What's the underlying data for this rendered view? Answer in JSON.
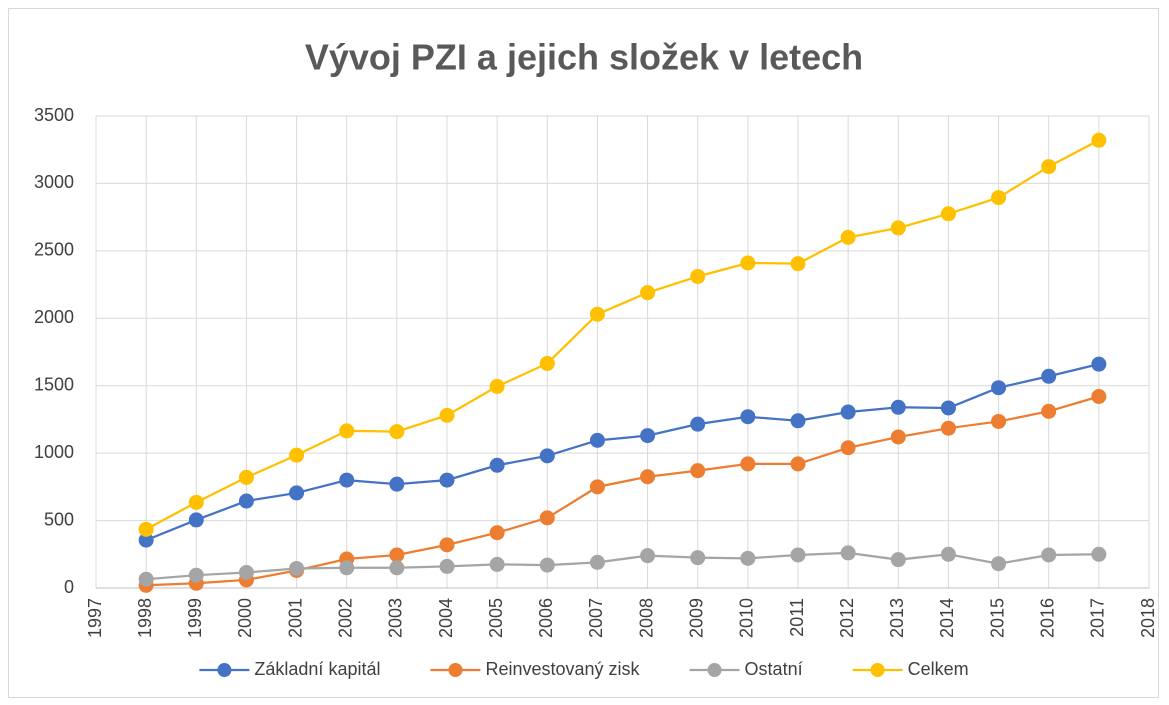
{
  "chart_data": {
    "type": "line",
    "title": "Vývoj PZI a jejich složek v letech",
    "x": [
      1998,
      1999,
      2000,
      2001,
      2002,
      2003,
      2004,
      2005,
      2006,
      2007,
      2008,
      2009,
      2010,
      2011,
      2012,
      2013,
      2014,
      2015,
      2016,
      2017
    ],
    "series": [
      {
        "name": "Základní kapitál",
        "color": "#4472c4",
        "values": [
          355,
          505,
          645,
          705,
          800,
          770,
          800,
          910,
          980,
          1095,
          1130,
          1215,
          1270,
          1240,
          1305,
          1340,
          1335,
          1485,
          1570,
          1660
        ]
      },
      {
        "name": "Reinvestovaný zisk",
        "color": "#ed7d31",
        "values": [
          20,
          35,
          60,
          130,
          215,
          245,
          320,
          410,
          520,
          750,
          825,
          870,
          920,
          920,
          1040,
          1120,
          1185,
          1235,
          1310,
          1420
        ]
      },
      {
        "name": "Ostatní",
        "color": "#a5a5a5",
        "values": [
          65,
          95,
          115,
          145,
          150,
          150,
          160,
          175,
          170,
          190,
          240,
          225,
          220,
          245,
          260,
          210,
          250,
          180,
          245,
          250
        ]
      },
      {
        "name": "Celkem",
        "color": "#ffc000",
        "values": [
          435,
          635,
          820,
          985,
          1165,
          1160,
          1280,
          1495,
          1665,
          2030,
          2190,
          2310,
          2410,
          2405,
          2600,
          2670,
          2775,
          2895,
          3125,
          3320
        ]
      }
    ],
    "xlim": [
      1997,
      2018
    ],
    "xticks": [
      1997,
      1998,
      1999,
      2000,
      2001,
      2002,
      2003,
      2004,
      2005,
      2006,
      2007,
      2008,
      2009,
      2010,
      2011,
      2012,
      2013,
      2014,
      2015,
      2016,
      2017,
      2018
    ],
    "ylim": [
      0,
      3500
    ],
    "yticks": [
      0,
      500,
      1000,
      1500,
      2000,
      2500,
      3000,
      3500
    ],
    "grid": true,
    "legend": "bottom"
  }
}
